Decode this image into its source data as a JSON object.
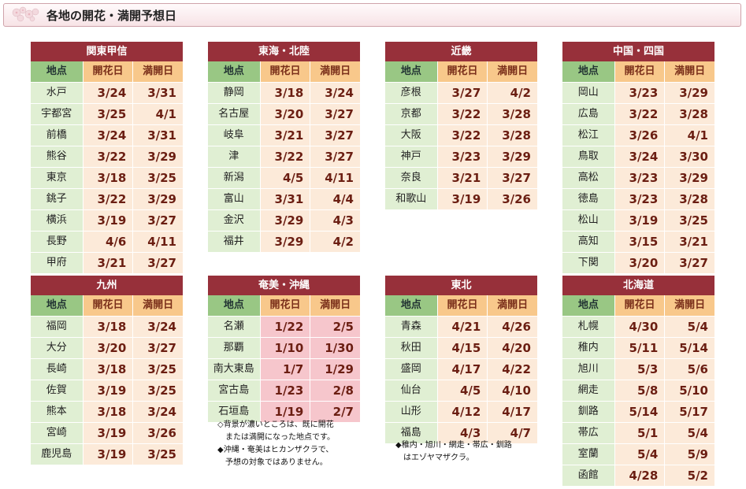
{
  "page": {
    "title": "各地の開花・満開予想日",
    "columns": {
      "place": "地点",
      "bloom": "開花日",
      "full": "満開日"
    }
  },
  "regions": [
    {
      "name": "関東甲信",
      "rows": [
        {
          "place": "水戸",
          "bloom": "3/24",
          "full": "3/31"
        },
        {
          "place": "宇都宮",
          "bloom": "3/25",
          "full": "4/1"
        },
        {
          "place": "前橋",
          "bloom": "3/24",
          "full": "3/31"
        },
        {
          "place": "熊谷",
          "bloom": "3/22",
          "full": "3/29"
        },
        {
          "place": "東京",
          "bloom": "3/18",
          "full": "3/25"
        },
        {
          "place": "銚子",
          "bloom": "3/22",
          "full": "3/29"
        },
        {
          "place": "横浜",
          "bloom": "3/19",
          "full": "3/27"
        },
        {
          "place": "長野",
          "bloom": "4/6",
          "full": "4/11"
        },
        {
          "place": "甲府",
          "bloom": "3/21",
          "full": "3/27"
        }
      ]
    },
    {
      "name": "東海・北陸",
      "rows": [
        {
          "place": "静岡",
          "bloom": "3/18",
          "full": "3/24"
        },
        {
          "place": "名古屋",
          "bloom": "3/20",
          "full": "3/27"
        },
        {
          "place": "岐阜",
          "bloom": "3/21",
          "full": "3/27"
        },
        {
          "place": "津",
          "bloom": "3/22",
          "full": "3/27"
        },
        {
          "place": "新潟",
          "bloom": "4/5",
          "full": "4/11"
        },
        {
          "place": "富山",
          "bloom": "3/31",
          "full": "4/4"
        },
        {
          "place": "金沢",
          "bloom": "3/29",
          "full": "4/3"
        },
        {
          "place": "福井",
          "bloom": "3/29",
          "full": "4/2"
        }
      ]
    },
    {
      "name": "近畿",
      "rows": [
        {
          "place": "彦根",
          "bloom": "3/27",
          "full": "4/2"
        },
        {
          "place": "京都",
          "bloom": "3/22",
          "full": "3/28"
        },
        {
          "place": "大阪",
          "bloom": "3/22",
          "full": "3/28"
        },
        {
          "place": "神戸",
          "bloom": "3/23",
          "full": "3/29"
        },
        {
          "place": "奈良",
          "bloom": "3/21",
          "full": "3/27"
        },
        {
          "place": "和歌山",
          "bloom": "3/19",
          "full": "3/26"
        }
      ]
    },
    {
      "name": "中国・四国",
      "rows": [
        {
          "place": "岡山",
          "bloom": "3/23",
          "full": "3/29"
        },
        {
          "place": "広島",
          "bloom": "3/22",
          "full": "3/28"
        },
        {
          "place": "松江",
          "bloom": "3/26",
          "full": "4/1"
        },
        {
          "place": "鳥取",
          "bloom": "3/24",
          "full": "3/30"
        },
        {
          "place": "高松",
          "bloom": "3/23",
          "full": "3/29"
        },
        {
          "place": "徳島",
          "bloom": "3/23",
          "full": "3/28"
        },
        {
          "place": "松山",
          "bloom": "3/19",
          "full": "3/25"
        },
        {
          "place": "高知",
          "bloom": "3/15",
          "full": "3/21"
        },
        {
          "place": "下関",
          "bloom": "3/20",
          "full": "3/27"
        }
      ]
    },
    {
      "name": "九州",
      "rows": [
        {
          "place": "福岡",
          "bloom": "3/18",
          "full": "3/24"
        },
        {
          "place": "大分",
          "bloom": "3/20",
          "full": "3/27"
        },
        {
          "place": "長崎",
          "bloom": "3/18",
          "full": "3/25"
        },
        {
          "place": "佐賀",
          "bloom": "3/19",
          "full": "3/25"
        },
        {
          "place": "熊本",
          "bloom": "3/18",
          "full": "3/24"
        },
        {
          "place": "宮崎",
          "bloom": "3/19",
          "full": "3/26"
        },
        {
          "place": "鹿児島",
          "bloom": "3/19",
          "full": "3/25"
        }
      ]
    },
    {
      "name": "奄美・沖縄",
      "rows": [
        {
          "place": "名瀬",
          "bloom": "1/22",
          "full": "2/5",
          "bloomed": true
        },
        {
          "place": "那覇",
          "bloom": "1/10",
          "full": "1/30",
          "bloomed": true
        },
        {
          "place": "南大東島",
          "bloom": "1/7",
          "full": "1/29",
          "bloomed": true
        },
        {
          "place": "宮古島",
          "bloom": "1/23",
          "full": "2/8",
          "bloomed": true
        },
        {
          "place": "石垣島",
          "bloom": "1/19",
          "full": "2/7",
          "bloomed": true
        }
      ]
    },
    {
      "name": "東北",
      "rows": [
        {
          "place": "青森",
          "bloom": "4/21",
          "full": "4/26"
        },
        {
          "place": "秋田",
          "bloom": "4/15",
          "full": "4/20"
        },
        {
          "place": "盛岡",
          "bloom": "4/17",
          "full": "4/22"
        },
        {
          "place": "仙台",
          "bloom": "4/5",
          "full": "4/10"
        },
        {
          "place": "山形",
          "bloom": "4/12",
          "full": "4/17"
        },
        {
          "place": "福島",
          "bloom": "4/3",
          "full": "4/7"
        }
      ]
    },
    {
      "name": "北海道",
      "rows": [
        {
          "place": "札幌",
          "bloom": "4/30",
          "full": "5/4"
        },
        {
          "place": "稚内",
          "bloom": "5/11",
          "full": "5/14"
        },
        {
          "place": "旭川",
          "bloom": "5/3",
          "full": "5/6"
        },
        {
          "place": "網走",
          "bloom": "5/8",
          "full": "5/10"
        },
        {
          "place": "釧路",
          "bloom": "5/14",
          "full": "5/17"
        },
        {
          "place": "帯広",
          "bloom": "5/1",
          "full": "5/4"
        },
        {
          "place": "室蘭",
          "bloom": "5/4",
          "full": "5/9"
        },
        {
          "place": "函館",
          "bloom": "4/28",
          "full": "5/2"
        }
      ]
    }
  ],
  "notes": {
    "okinawa": [
      "◇背景が濃いところは、既に開花",
      "　または満開になった地点です。",
      "◆沖縄・奄美はヒカンザクラで、",
      "　予想の対象ではありません。"
    ],
    "tohoku": [
      "◆稚内・旭川・網走・帯広・釧路",
      "　はエゾヤマザクラ。"
    ]
  },
  "colors": {
    "region_header": "#97303a",
    "place_header": "#99c784",
    "date_header": "#f8c88b",
    "place_cell": "#e0efd3",
    "date_cell": "#fcead9",
    "bloomed_cell": "#f6c6cc"
  }
}
